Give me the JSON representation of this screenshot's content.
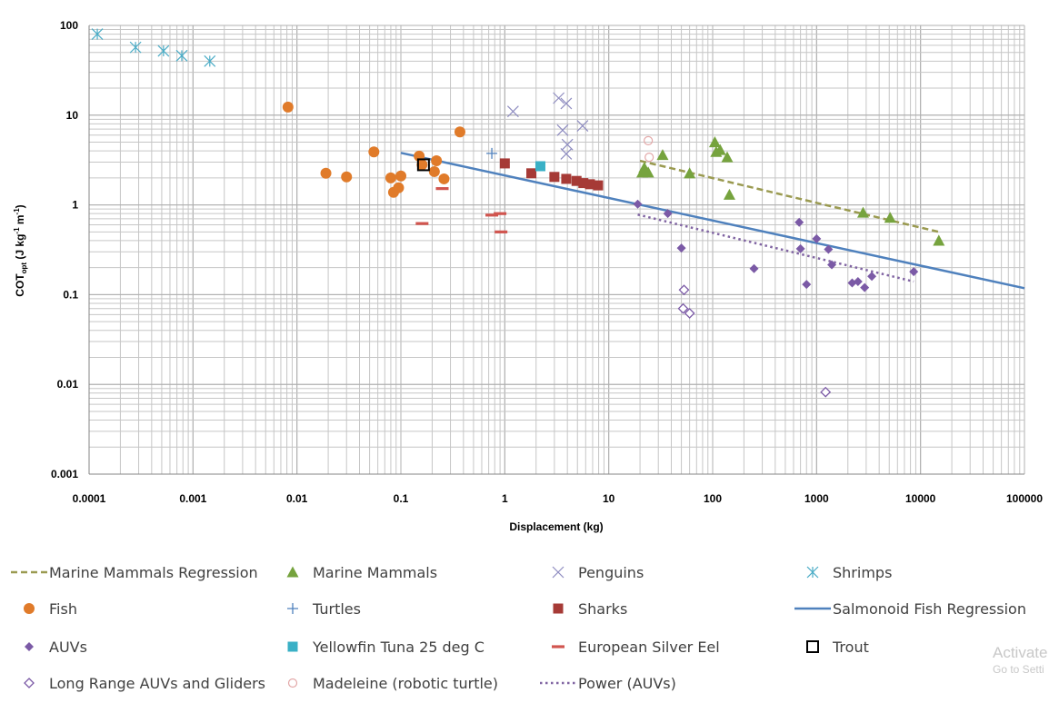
{
  "chart_data": {
    "type": "scatter",
    "xscale": "log",
    "yscale": "log",
    "xlim": [
      0.0001,
      100000
    ],
    "ylim": [
      0.001,
      100
    ],
    "xlabel": "Displacement (kg)",
    "ylabel": {
      "main": "COT",
      "sub": "opt",
      "units": " (J kg",
      "exp1": "-1",
      "mid": " m",
      "exp2": "-1",
      "close": ")"
    },
    "grid": true,
    "x_ticks": [
      {
        "v": 0.0001,
        "label": "0.0001"
      },
      {
        "v": 0.001,
        "label": "0.001"
      },
      {
        "v": 0.01,
        "label": "0.01"
      },
      {
        "v": 0.1,
        "label": "0.1"
      },
      {
        "v": 1,
        "label": "1"
      },
      {
        "v": 10,
        "label": "10"
      },
      {
        "v": 100,
        "label": "100"
      },
      {
        "v": 1000,
        "label": "1000"
      },
      {
        "v": 10000,
        "label": "10000"
      },
      {
        "v": 100000,
        "label": "100000"
      }
    ],
    "y_ticks": [
      {
        "v": 0.001,
        "label": "0.001"
      },
      {
        "v": 0.01,
        "label": "0.01"
      },
      {
        "v": 0.1,
        "label": "0.1"
      },
      {
        "v": 1,
        "label": "1"
      },
      {
        "v": 10,
        "label": "10"
      },
      {
        "v": 100,
        "label": "100"
      }
    ],
    "series": [
      {
        "name": "Shrimps",
        "marker": "asterisk",
        "color": "#4bacc6",
        "points": [
          [
            0.00012,
            80
          ],
          [
            0.00028,
            57
          ],
          [
            0.00052,
            52
          ],
          [
            0.00078,
            46
          ],
          [
            0.00145,
            40
          ]
        ]
      },
      {
        "name": "Fish",
        "marker": "circle",
        "color": "#e07b2a",
        "points": [
          [
            0.0082,
            12.3
          ],
          [
            0.019,
            2.25
          ],
          [
            0.03,
            2.05
          ],
          [
            0.055,
            3.9
          ],
          [
            0.08,
            2.0
          ],
          [
            0.085,
            1.38
          ],
          [
            0.095,
            1.55
          ],
          [
            0.1,
            2.1
          ],
          [
            0.15,
            3.5
          ],
          [
            0.16,
            2.8
          ],
          [
            0.21,
            2.35
          ],
          [
            0.22,
            3.1
          ],
          [
            0.26,
            1.95
          ],
          [
            0.37,
            6.5
          ]
        ]
      },
      {
        "name": "Trout",
        "marker": "open-square",
        "color": "#000000",
        "points": [
          [
            0.165,
            2.8
          ]
        ]
      },
      {
        "name": "Turtles",
        "marker": "plus",
        "color": "#4f81bd",
        "points": [
          [
            0.75,
            3.75
          ]
        ]
      },
      {
        "name": "Penguins",
        "marker": "x",
        "color": "#8e8cc0",
        "points": [
          [
            1.2,
            11
          ],
          [
            3.3,
            15.5
          ],
          [
            3.9,
            13.5
          ],
          [
            3.6,
            6.8
          ],
          [
            4.0,
            4.7
          ],
          [
            3.9,
            3.7
          ],
          [
            5.6,
            7.6
          ]
        ]
      },
      {
        "name": "Sharks",
        "marker": "square",
        "color": "#a63a36",
        "points": [
          [
            1.0,
            2.9
          ],
          [
            1.8,
            2.25
          ],
          [
            3.0,
            2.05
          ],
          [
            3.9,
            1.95
          ],
          [
            4.9,
            1.85
          ],
          [
            5.7,
            1.75
          ],
          [
            6.6,
            1.7
          ],
          [
            7.9,
            1.65
          ]
        ]
      },
      {
        "name": "Yellowfin Tuna 25 deg C",
        "marker": "square",
        "color": "#3ab0c6",
        "points": [
          [
            2.2,
            2.7
          ]
        ]
      },
      {
        "name": "European Silver Eel",
        "marker": "dash",
        "color": "#d1554f",
        "points": [
          [
            0.16,
            0.62
          ],
          [
            0.25,
            1.52
          ],
          [
            0.75,
            0.77
          ],
          [
            0.9,
            0.8
          ],
          [
            0.92,
            0.5
          ]
        ]
      },
      {
        "name": "Marine Mammals",
        "marker": "triangle",
        "color": "#76a33e",
        "points": [
          [
            21,
            2.3
          ],
          [
            22,
            2.6
          ],
          [
            24,
            2.3
          ],
          [
            33,
            3.6
          ],
          [
            60,
            2.25
          ],
          [
            105,
            5.0
          ],
          [
            108,
            3.9
          ],
          [
            118,
            4.1
          ],
          [
            138,
            3.4
          ],
          [
            145,
            1.3
          ],
          [
            2800,
            0.82
          ],
          [
            5100,
            0.72
          ],
          [
            15000,
            0.4
          ]
        ]
      },
      {
        "name": "Madeleine (robotic turtle)",
        "marker": "open-circle",
        "color": "#e3a8a8",
        "points": [
          [
            24,
            5.2
          ],
          [
            24.5,
            3.4
          ]
        ]
      },
      {
        "name": "AUVs",
        "marker": "diamond",
        "color": "#7b5aa6",
        "points": [
          [
            19,
            1.02
          ],
          [
            37,
            0.8
          ],
          [
            50,
            0.33
          ],
          [
            250,
            0.195
          ],
          [
            680,
            0.64
          ],
          [
            700,
            0.325
          ],
          [
            800,
            0.13
          ],
          [
            1000,
            0.42
          ],
          [
            1300,
            0.32
          ],
          [
            1400,
            0.215
          ],
          [
            2200,
            0.135
          ],
          [
            2500,
            0.14
          ],
          [
            2900,
            0.12
          ],
          [
            3400,
            0.16
          ],
          [
            8600,
            0.18
          ]
        ]
      },
      {
        "name": "Long Range AUVs and Gliders",
        "marker": "open-diamond",
        "color": "#7b5aa6",
        "points": [
          [
            53,
            0.113
          ],
          [
            52,
            0.07
          ],
          [
            60,
            0.062
          ],
          [
            1220,
            0.0082
          ]
        ]
      },
      {
        "name": "Salmonoid Fish Regression",
        "marker": "line",
        "style": "solid",
        "color": "#4f81bd",
        "points": [
          [
            0.1,
            3.8
          ],
          [
            100000,
            0.118
          ]
        ]
      },
      {
        "name": "Marine Mammals Regression",
        "marker": "line",
        "style": "dashed",
        "color": "#9a9a50",
        "points": [
          [
            20,
            3.1
          ],
          [
            15000,
            0.5
          ]
        ]
      },
      {
        "name": "Power (AUVs)",
        "marker": "line",
        "style": "dotted",
        "color": "#8064a2",
        "points": [
          [
            19,
            0.78
          ],
          [
            8600,
            0.14
          ]
        ]
      }
    ]
  },
  "legend": [
    {
      "label": "Marine Mammals Regression",
      "marker": "line-dashed",
      "color": "#9a9a50"
    },
    {
      "label": "Marine Mammals",
      "marker": "triangle",
      "color": "#76a33e"
    },
    {
      "label": "Penguins",
      "marker": "x",
      "color": "#8e8cc0"
    },
    {
      "label": "Shrimps",
      "marker": "asterisk",
      "color": "#4bacc6"
    },
    {
      "label": "Fish",
      "marker": "circle",
      "color": "#e07b2a"
    },
    {
      "label": "Turtles",
      "marker": "plus",
      "color": "#4f81bd"
    },
    {
      "label": "Sharks",
      "marker": "square",
      "color": "#a63a36"
    },
    {
      "label": "Salmonoid Fish Regression",
      "marker": "line-solid",
      "color": "#4f81bd"
    },
    {
      "label": "AUVs",
      "marker": "diamond",
      "color": "#7b5aa6"
    },
    {
      "label": "Yellowfin Tuna 25 deg C",
      "marker": "square",
      "color": "#3ab0c6"
    },
    {
      "label": "European Silver Eel",
      "marker": "dash",
      "color": "#d1554f"
    },
    {
      "label": "Trout",
      "marker": "open-square",
      "color": "#000000"
    },
    {
      "label": "Long Range AUVs and Gliders",
      "marker": "open-diamond",
      "color": "#7b5aa6"
    },
    {
      "label": "Madeleine (robotic turtle)",
      "marker": "open-circle",
      "color": "#e3a8a8"
    },
    {
      "label": "Power (AUVs)",
      "marker": "line-dotted",
      "color": "#8064a2"
    }
  ],
  "watermark": {
    "line1": "Activate",
    "line2": "Go to Setti"
  }
}
